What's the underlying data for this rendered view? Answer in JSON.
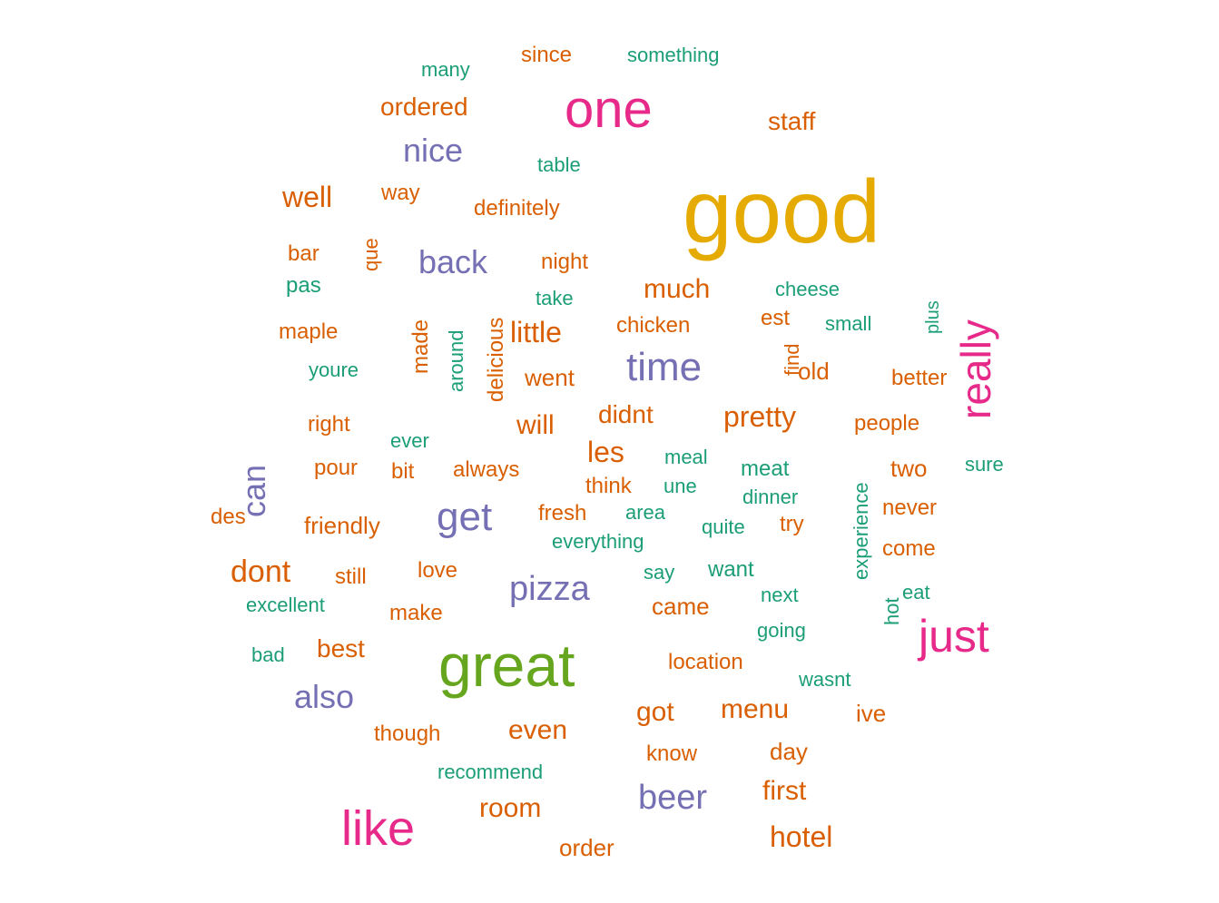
{
  "palette": {
    "green": "#1b9e77",
    "orange": "#d95f02",
    "purple": "#7570b3",
    "magenta": "#e7298a",
    "lime": "#66a61e",
    "gold": "#e6ab02"
  },
  "words": [
    {
      "text": "good",
      "color": "gold"
    },
    {
      "text": "great",
      "color": "lime"
    },
    {
      "text": "one",
      "color": "magenta"
    },
    {
      "text": "like",
      "color": "magenta"
    },
    {
      "text": "just",
      "color": "magenta"
    },
    {
      "text": "really",
      "color": "magenta"
    },
    {
      "text": "time",
      "color": "purple"
    },
    {
      "text": "get",
      "color": "purple"
    },
    {
      "text": "pizza",
      "color": "purple"
    },
    {
      "text": "beer",
      "color": "purple"
    },
    {
      "text": "nice",
      "color": "purple"
    },
    {
      "text": "back",
      "color": "purple"
    },
    {
      "text": "also",
      "color": "purple"
    },
    {
      "text": "can",
      "color": "purple"
    },
    {
      "text": "well",
      "color": "orange"
    },
    {
      "text": "dont",
      "color": "orange"
    },
    {
      "text": "little",
      "color": "orange"
    },
    {
      "text": "much",
      "color": "orange"
    },
    {
      "text": "les",
      "color": "orange"
    },
    {
      "text": "pretty",
      "color": "orange"
    },
    {
      "text": "room",
      "color": "orange"
    },
    {
      "text": "hotel",
      "color": "orange"
    },
    {
      "text": "first",
      "color": "orange"
    },
    {
      "text": "even",
      "color": "orange"
    },
    {
      "text": "got",
      "color": "orange"
    },
    {
      "text": "menu",
      "color": "orange"
    },
    {
      "text": "will",
      "color": "orange"
    },
    {
      "text": "didnt",
      "color": "orange"
    },
    {
      "text": "ordered",
      "color": "orange"
    },
    {
      "text": "staff",
      "color": "orange"
    },
    {
      "text": "best",
      "color": "orange"
    },
    {
      "text": "since",
      "color": "orange"
    },
    {
      "text": "friendly",
      "color": "orange"
    },
    {
      "text": "went",
      "color": "orange"
    },
    {
      "text": "chicken",
      "color": "orange"
    },
    {
      "text": "maple",
      "color": "orange"
    },
    {
      "text": "night",
      "color": "orange"
    },
    {
      "text": "definitely",
      "color": "orange"
    },
    {
      "text": "always",
      "color": "orange"
    },
    {
      "text": "came",
      "color": "orange"
    },
    {
      "text": "location",
      "color": "orange"
    },
    {
      "text": "order",
      "color": "orange"
    },
    {
      "text": "day",
      "color": "orange"
    },
    {
      "text": "two",
      "color": "orange"
    },
    {
      "text": "never",
      "color": "orange"
    },
    {
      "text": "come",
      "color": "orange"
    },
    {
      "text": "people",
      "color": "orange"
    },
    {
      "text": "better",
      "color": "orange"
    },
    {
      "text": "old",
      "color": "orange"
    },
    {
      "text": "though",
      "color": "orange"
    },
    {
      "text": "make",
      "color": "orange"
    },
    {
      "text": "love",
      "color": "orange"
    },
    {
      "text": "still",
      "color": "orange"
    },
    {
      "text": "right",
      "color": "orange"
    },
    {
      "text": "pour",
      "color": "orange"
    },
    {
      "text": "bit",
      "color": "orange"
    },
    {
      "text": "bar",
      "color": "orange"
    },
    {
      "text": "way",
      "color": "orange"
    },
    {
      "text": "des",
      "color": "orange"
    },
    {
      "text": "fresh",
      "color": "orange"
    },
    {
      "text": "think",
      "color": "orange"
    },
    {
      "text": "try",
      "color": "orange"
    },
    {
      "text": "est",
      "color": "orange"
    },
    {
      "text": "ive",
      "color": "orange"
    },
    {
      "text": "know",
      "color": "orange"
    },
    {
      "text": "que",
      "color": "orange"
    },
    {
      "text": "made",
      "color": "orange"
    },
    {
      "text": "delicious",
      "color": "orange"
    },
    {
      "text": "find",
      "color": "orange"
    },
    {
      "text": "many",
      "color": "green"
    },
    {
      "text": "something",
      "color": "green"
    },
    {
      "text": "table",
      "color": "green"
    },
    {
      "text": "pas",
      "color": "green"
    },
    {
      "text": "take",
      "color": "green"
    },
    {
      "text": "cheese",
      "color": "green"
    },
    {
      "text": "small",
      "color": "green"
    },
    {
      "text": "youre",
      "color": "green"
    },
    {
      "text": "ever",
      "color": "green"
    },
    {
      "text": "meal",
      "color": "green"
    },
    {
      "text": "une",
      "color": "green"
    },
    {
      "text": "meat",
      "color": "green"
    },
    {
      "text": "dinner",
      "color": "green"
    },
    {
      "text": "sure",
      "color": "green"
    },
    {
      "text": "area",
      "color": "green"
    },
    {
      "text": "everything",
      "color": "green"
    },
    {
      "text": "quite",
      "color": "green"
    },
    {
      "text": "say",
      "color": "green"
    },
    {
      "text": "want",
      "color": "green"
    },
    {
      "text": "next",
      "color": "green"
    },
    {
      "text": "eat",
      "color": "green"
    },
    {
      "text": "excellent",
      "color": "green"
    },
    {
      "text": "going",
      "color": "green"
    },
    {
      "text": "bad",
      "color": "green"
    },
    {
      "text": "wasnt",
      "color": "green"
    },
    {
      "text": "recommend",
      "color": "green"
    },
    {
      "text": "around",
      "color": "green"
    },
    {
      "text": "plus",
      "color": "green"
    },
    {
      "text": "experience",
      "color": "green"
    },
    {
      "text": "hot",
      "color": "green"
    }
  ]
}
